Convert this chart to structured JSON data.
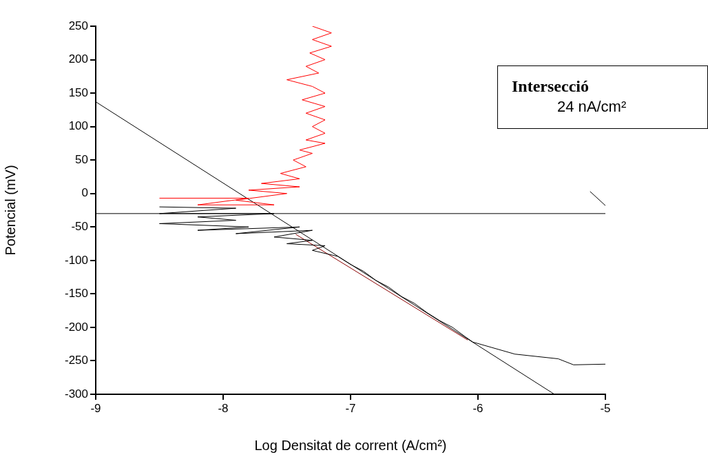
{
  "chart_data": {
    "type": "line",
    "xlabel": "Log Densitat de corrent (A/cm²)",
    "ylabel": "Potencial (mV)",
    "xlim": [
      -9,
      -5
    ],
    "xticks": [
      -9,
      -8,
      -7,
      -6,
      -5
    ],
    "ylim": [
      -300,
      250
    ],
    "yticks": [
      -300,
      -250,
      -200,
      -150,
      -100,
      -50,
      0,
      50,
      100,
      150,
      200,
      250
    ],
    "grid": false,
    "legend": false,
    "marker": "none",
    "line_style": "solid",
    "annotations": [
      "Intersecció",
      "24 nA/cm²"
    ],
    "ref_lines": [
      {
        "axis": "y",
        "value": -30,
        "color": "#000000"
      }
    ],
    "series": [
      {
        "color": "#000000",
        "x": [
          -8.5,
          -7.9,
          -8.5,
          -7.6,
          -8.2,
          -7.9,
          -8.5,
          -7.8,
          -8.2,
          -7.4,
          -7.9,
          -7.3,
          -7.6,
          -7.3,
          -7.5,
          -7.2,
          -7.3,
          -7.1,
          -7,
          -6.9,
          -6.8,
          -6.7,
          -6.6,
          -6.5,
          -6.4,
          -6.3,
          -6.2,
          -6.1,
          -6.04,
          -5.71,
          -5.37,
          -5.25,
          -5
        ],
        "values": [
          -20,
          -22,
          -30,
          -30,
          -35,
          -40,
          -45,
          -50,
          -55,
          -50,
          -60,
          -55,
          -65,
          -70,
          -75,
          -78,
          -85,
          -94,
          -106,
          -116,
          -130,
          -140,
          -154,
          -164,
          -178,
          -190,
          -200,
          -214,
          -222,
          -240,
          -247,
          -256,
          -255
        ]
      },
      {
        "color": "#ff0000",
        "x": [
          -8.5,
          -7.8,
          -8.2,
          -7.6,
          -7.9,
          -7.5,
          -7.8,
          -7.4,
          -7.7,
          -7.4,
          -7.55,
          -7.35,
          -7.45,
          -7.3,
          -7.4,
          -7.2,
          -7.35,
          -7.2,
          -7.3,
          -7.2,
          -7.35,
          -7.2,
          -7.38,
          -7.2,
          -7.3,
          -7.5,
          -7.25,
          -7.35,
          -7.2,
          -7.32,
          -7.15,
          -7.3,
          -7.15,
          -7.3
        ],
        "values": [
          -7,
          -7,
          -17,
          -17,
          -10,
          0,
          5,
          10,
          15,
          22,
          30,
          40,
          50,
          60,
          65,
          75,
          80,
          90,
          100,
          110,
          120,
          130,
          140,
          150,
          160,
          170,
          180,
          190,
          200,
          210,
          220,
          230,
          240,
          250
        ]
      },
      {
        "color": "#000000",
        "x": [
          -9,
          -5.4
        ],
        "values": [
          137,
          -300
        ]
      },
      {
        "color": "#000000",
        "x": [
          -5.12,
          -5
        ],
        "values": [
          3,
          -18
        ]
      },
      {
        "color": "#8b0000",
        "x": [
          -7.43,
          -6.08
        ],
        "values": [
          -61,
          -219
        ]
      }
    ]
  }
}
